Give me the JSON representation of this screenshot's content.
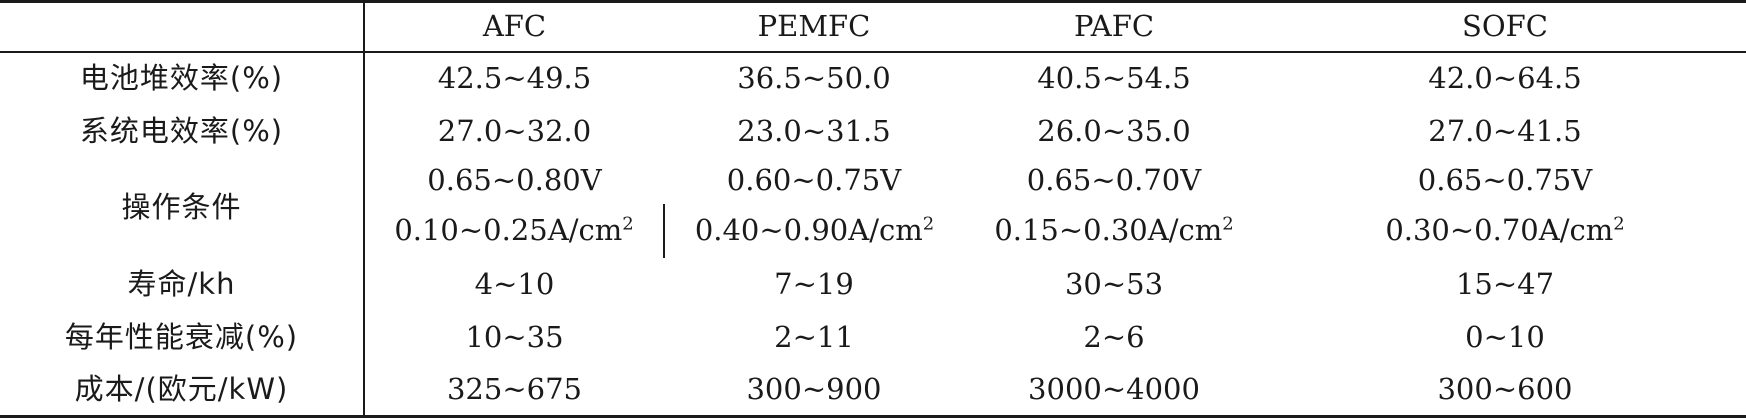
{
  "table": {
    "columns": [
      "",
      "AFC",
      "PEMFC",
      "PAFC",
      "SOFC"
    ],
    "stack_efficiency": {
      "label": "电池堆效率(%)",
      "values": [
        "42.5~49.5",
        "36.5~50.0",
        "40.5~54.5",
        "42.0~64.5"
      ]
    },
    "system_efficiency": {
      "label": "系统电效率(%)",
      "values": [
        "27.0~32.0",
        "23.0~31.5",
        "26.0~35.0",
        "27.0~41.5"
      ]
    },
    "operating_conditions": {
      "label": "操作条件",
      "voltage": [
        "0.65~0.80V",
        "0.60~0.75V",
        "0.65~0.70V",
        "0.65~0.75V"
      ],
      "current_density": [
        "0.10~0.25A/cm",
        "0.40~0.90A/cm",
        "0.15~0.30A/cm",
        "0.30~0.70A/cm"
      ],
      "current_density_exponent": "2"
    },
    "lifetime": {
      "label": "寿命/kh",
      "values": [
        "4~10",
        "7~19",
        "30~53",
        "15~47"
      ]
    },
    "annual_degradation": {
      "label": "每年性能衰减(%)",
      "values": [
        "10~35",
        "2~11",
        "2~6",
        "0~10"
      ]
    },
    "cost": {
      "label": "成本/(欧元/kW)",
      "values": [
        "325~675",
        "300~900",
        "3000~4000",
        "300~600"
      ]
    }
  }
}
